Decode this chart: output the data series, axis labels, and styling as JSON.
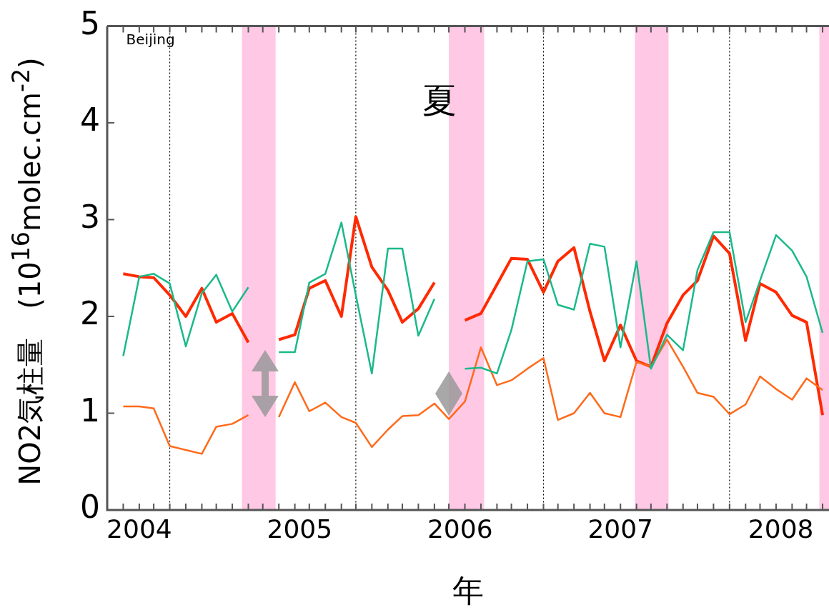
{
  "chart_data": {
    "type": "line",
    "xlabel": "年",
    "ylabel": "NO2気柱量　(10$^{16}$molec.cm$^{-2}$)",
    "x": [
      2003.9,
      2004.0,
      2004.09,
      2004.19,
      2004.29,
      2004.39,
      2004.48,
      2004.58,
      2004.68,
      2004.77,
      2004.87,
      2004.97,
      2005.06,
      2005.16,
      2005.26,
      2005.35,
      2005.45,
      2005.55,
      2005.64,
      2005.74,
      2005.84,
      2005.93,
      2006.03,
      2006.13,
      2006.23,
      2006.32,
      2006.42,
      2006.52,
      2006.61,
      2006.71,
      2006.81,
      2006.9,
      2007.0,
      2007.1,
      2007.19,
      2007.29,
      2007.39,
      2007.48,
      2007.58,
      2007.68,
      2007.78,
      2007.87,
      2007.97,
      2008.07,
      2008.16,
      2008.26
    ],
    "series": [
      {
        "color": "#1ab98a",
        "values": [
          1.59,
          2.41,
          2.44,
          2.34,
          1.69,
          2.24,
          2.43,
          2.05,
          2.3,
          null,
          1.63,
          1.63,
          2.35,
          2.44,
          2.97,
          2.22,
          1.41,
          2.7,
          2.7,
          1.8,
          2.18,
          null,
          1.46,
          1.47,
          1.41,
          1.86,
          2.57,
          2.59,
          2.12,
          2.07,
          2.75,
          2.72,
          1.68,
          2.57,
          1.46,
          1.81,
          1.65,
          2.48,
          2.87,
          2.87,
          1.94,
          2.37,
          2.84,
          2.68,
          2.41,
          1.83
        ]
      },
      {
        "color": "#ff6a1a",
        "values": [
          1.07,
          1.07,
          1.05,
          0.66,
          0.62,
          0.58,
          0.86,
          0.89,
          0.98,
          null,
          0.96,
          1.32,
          1.02,
          1.11,
          0.96,
          0.9,
          0.65,
          0.83,
          0.97,
          0.98,
          1.1,
          0.94,
          1.12,
          1.68,
          1.29,
          1.34,
          1.46,
          1.57,
          0.93,
          1.0,
          1.21,
          1.0,
          0.96,
          1.53,
          1.48,
          1.76,
          1.48,
          1.21,
          1.17,
          0.99,
          1.09,
          1.38,
          1.25,
          1.14,
          1.36,
          1.24
        ]
      },
      {
        "color": "#ff2a00",
        "values": [
          2.44,
          2.41,
          2.4,
          2.22,
          2.0,
          2.29,
          1.94,
          2.03,
          1.73,
          null,
          1.76,
          1.81,
          2.29,
          2.37,
          2.0,
          3.03,
          2.51,
          2.27,
          1.94,
          2.08,
          2.35,
          null,
          1.96,
          2.03,
          2.33,
          2.6,
          2.59,
          2.25,
          2.57,
          2.71,
          2.05,
          1.54,
          1.91,
          1.54,
          1.48,
          1.93,
          2.22,
          2.37,
          2.83,
          2.65,
          1.75,
          2.34,
          2.25,
          2.01,
          1.94,
          0.98
        ]
      }
    ],
    "xlim": [
      2003.8,
      2008.3
    ],
    "xticks": [
      2004,
      2005,
      2006,
      2007,
      2008
    ],
    "ylim": [
      0,
      5
    ],
    "yticks": [
      0,
      1,
      2,
      3,
      4,
      5
    ],
    "grid": false,
    "legend": false,
    "marker": "none",
    "line_style": "solid",
    "ref_lines": [
      {
        "axis": "x",
        "value": 2004.19,
        "color": "#000000",
        "line_style": "dotted"
      },
      {
        "axis": "x",
        "value": 2005.35,
        "color": "#000000",
        "line_style": "dotted"
      },
      {
        "axis": "x",
        "value": 2006.52,
        "color": "#000000",
        "line_style": "dotted"
      },
      {
        "axis": "x",
        "value": 2007.68,
        "color": "#000000",
        "line_style": "dotted"
      }
    ],
    "bands": [
      {
        "axis": "x",
        "from": 2004.64,
        "to": 2004.85,
        "color": "#ffb6dc"
      },
      {
        "axis": "x",
        "from": 2005.93,
        "to": 2006.15,
        "color": "#ffb6dc"
      },
      {
        "axis": "x",
        "from": 2007.09,
        "to": 2007.3,
        "color": "#ffb6dc"
      },
      {
        "axis": "x",
        "from": 2008.24,
        "to": 2008.3,
        "color": "#ffb6dc"
      }
    ],
    "annotations": [
      "夏",
      "Beijing"
    ]
  }
}
